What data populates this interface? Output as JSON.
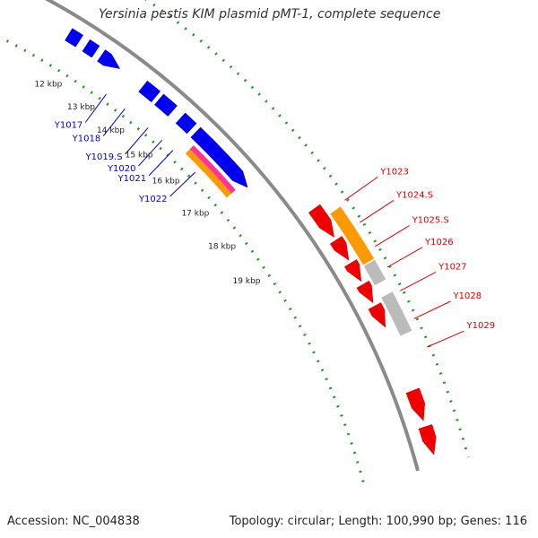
{
  "title": "Yersinia pestis KIM plasmid pMT-1, complete sequence",
  "accession": "Accession: NC_004838",
  "summary": "Topology: circular; Length: 100,990 bp; Genes: 116",
  "colors": {
    "backbone": "#8a8a8a",
    "forward_gene": "#0000ee",
    "reverse_gene": "#ee0000",
    "orange_feature": "#ff9900",
    "pink_feature": "#ff3399",
    "grey_feature": "#bbbbbb",
    "gc_dots": "#229922",
    "forward_label": "#0000cc",
    "reverse_label": "#dd0000"
  },
  "ticks": [
    "12 kbp",
    "13 kbp",
    "14 kbp",
    "15 kbp",
    "16 kbp",
    "17 kbp",
    "18 kbp",
    "19 kbp"
  ],
  "forward_genes": [
    "Y1017",
    "Y1018",
    "Y1019.S",
    "Y1020",
    "Y1021",
    "Y1022"
  ],
  "reverse_genes": [
    "Y1023",
    "Y1024.S",
    "Y1025.S",
    "Y1026",
    "Y1027",
    "Y1028",
    "Y1029"
  ]
}
